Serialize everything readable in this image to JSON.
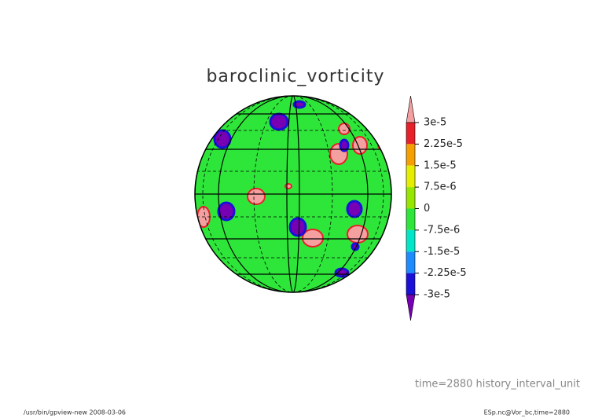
{
  "title": "baroclinic_vorticity",
  "colorbar": {
    "ticks": [
      {
        "value": 3e-05,
        "label": "3e-5"
      },
      {
        "value": 2.25e-05,
        "label": "2.25e-5"
      },
      {
        "value": 1.5e-05,
        "label": "1.5e-5"
      },
      {
        "value": 7.5e-06,
        "label": "7.5e-6"
      },
      0,
      {
        "value": -7.5e-06,
        "label": "-7.5e-6"
      },
      {
        "value": -1.5e-05,
        "label": "-1.5e-5"
      },
      {
        "value": -2.25e-05,
        "label": "-2.25e-5"
      },
      {
        "value": -3e-05,
        "label": "-3e-5"
      }
    ],
    "colors": [
      "#f4a0a0",
      "#e8202a",
      "#f5a000",
      "#e6ee00",
      "#96e600",
      "#2ee63a",
      "#00e6c8",
      "#1e8cff",
      "#1a10d8",
      "#7800b4"
    ]
  },
  "annotation": "time=2880  history_interval_unit",
  "footer": {
    "left": "/usr/bin/gpview-new   2008-03-06",
    "right": "ESp.nc@Vor_bc,time=2880"
  }
}
